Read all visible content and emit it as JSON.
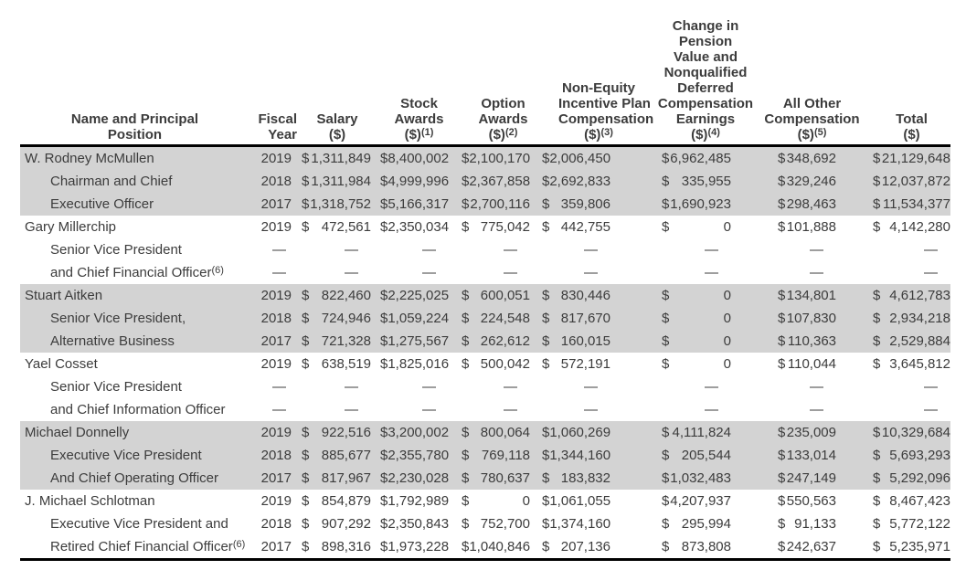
{
  "colors": {
    "shaded_band": "#d3d3d3",
    "plain_band": "#ffffff",
    "text": "#3c3c3c",
    "rule": "#000000"
  },
  "table": {
    "header": [
      {
        "id": "name",
        "lines": [
          "Name and Principal",
          "Position"
        ]
      },
      {
        "id": "year",
        "lines": [
          "Fiscal",
          "Year"
        ]
      },
      {
        "id": "salary",
        "lines": [
          "Salary",
          "($)"
        ]
      },
      {
        "id": "stock",
        "lines": [
          "Stock",
          "Awards",
          "($)^(1)"
        ]
      },
      {
        "id": "option",
        "lines": [
          "Option",
          "Awards",
          "($)^(2)"
        ]
      },
      {
        "id": "nonequity",
        "lines": [
          "Non-Equity",
          "Incentive Plan",
          "Compensation",
          "($)^(3)"
        ]
      },
      {
        "id": "pension",
        "lines": [
          "Change in",
          "Pension",
          "Value and",
          "Nonqualified",
          "Deferred",
          "Compensation",
          "Earnings",
          "($)^(4)"
        ]
      },
      {
        "id": "allother",
        "lines": [
          "All Other",
          "Compensation",
          "($)^(5)"
        ]
      },
      {
        "id": "total",
        "lines": [
          "Total",
          "($)"
        ]
      }
    ],
    "money_column_ids": [
      "salary",
      "stock",
      "option",
      "nonequity",
      "pension",
      "allother",
      "total"
    ],
    "groups": [
      {
        "executive": "W. Rodney McMullen",
        "shaded": true,
        "rows": [
          {
            "label": "W. Rodney McMullen",
            "indent": false,
            "year": "2019",
            "values": [
              "$1,311,849",
              "$8,400,002",
              "$2,100,170",
              "$2,006,450",
              "$6,962,485",
              "$348,692",
              "$21,129,648"
            ]
          },
          {
            "label": "Chairman and Chief",
            "indent": true,
            "year": "2018",
            "values": [
              "$1,311,984",
              "$4,999,996",
              "$2,367,858",
              "$2,692,833",
              "$ 335,955",
              "$329,246",
              "$12,037,872"
            ]
          },
          {
            "label": "Executive Officer",
            "indent": true,
            "year": "2017",
            "values": [
              "$1,318,752",
              "$5,166,317",
              "$2,700,116",
              "$ 359,806",
              "$1,690,923",
              "$298,463",
              "$11,534,377"
            ]
          }
        ]
      },
      {
        "executive": "Gary Millerchip",
        "shaded": false,
        "rows": [
          {
            "label": "Gary Millerchip",
            "indent": false,
            "year": "2019",
            "values": [
              "$ 472,561",
              "$2,350,034",
              "$ 775,042",
              "$ 442,755",
              "$ 0",
              "$101,888",
              "$ 4,142,280"
            ]
          },
          {
            "label": "Senior Vice President",
            "indent": true,
            "year": "—",
            "values": [
              "—",
              "—",
              "—",
              "—",
              "—",
              "—",
              "—"
            ]
          },
          {
            "label": "and Chief Financial Officer^(6)",
            "indent": true,
            "year": "—",
            "values": [
              "—",
              "—",
              "—",
              "—",
              "—",
              "—",
              "—"
            ]
          }
        ]
      },
      {
        "executive": "Stuart Aitken",
        "shaded": true,
        "rows": [
          {
            "label": "Stuart Aitken",
            "indent": false,
            "year": "2019",
            "values": [
              "$ 822,460",
              "$2,225,025",
              "$ 600,051",
              "$ 830,446",
              "$ 0",
              "$134,801",
              "$ 4,612,783"
            ]
          },
          {
            "label": "Senior Vice President,",
            "indent": true,
            "year": "2018",
            "values": [
              "$ 724,946",
              "$1,059,224",
              "$ 224,548",
              "$ 817,670",
              "$ 0",
              "$107,830",
              "$ 2,934,218"
            ]
          },
          {
            "label": "Alternative Business",
            "indent": true,
            "year": "2017",
            "values": [
              "$ 721,328",
              "$1,275,567",
              "$ 262,612",
              "$ 160,015",
              "$ 0",
              "$110,363",
              "$ 2,529,884"
            ]
          }
        ]
      },
      {
        "executive": "Yael Cosset",
        "shaded": false,
        "rows": [
          {
            "label": "Yael Cosset",
            "indent": false,
            "year": "2019",
            "values": [
              "$ 638,519",
              "$1,825,016",
              "$ 500,042",
              "$ 572,191",
              "$ 0",
              "$110,044",
              "$ 3,645,812"
            ]
          },
          {
            "label": "Senior Vice President",
            "indent": true,
            "year": "—",
            "values": [
              "—",
              "—",
              "—",
              "—",
              "—",
              "—",
              "—"
            ]
          },
          {
            "label": "and Chief Information Officer",
            "indent": true,
            "year": "—",
            "values": [
              "—",
              "—",
              "—",
              "—",
              "—",
              "—",
              "—"
            ]
          }
        ]
      },
      {
        "executive": "Michael Donnelly",
        "shaded": true,
        "rows": [
          {
            "label": "Michael Donnelly",
            "indent": false,
            "year": "2019",
            "values": [
              "$ 922,516",
              "$3,200,002",
              "$ 800,064",
              "$1,060,269",
              "$4,111,824",
              "$235,009",
              "$10,329,684"
            ]
          },
          {
            "label": "Executive Vice President",
            "indent": true,
            "year": "2018",
            "values": [
              "$ 885,677",
              "$2,355,780",
              "$ 769,118",
              "$1,344,160",
              "$ 205,544",
              "$133,014",
              "$ 5,693,293"
            ]
          },
          {
            "label": "And Chief Operating Officer",
            "indent": true,
            "year": "2017",
            "values": [
              "$ 817,967",
              "$2,230,028",
              "$ 780,637",
              "$ 183,832",
              "$1,032,483",
              "$247,149",
              "$ 5,292,096"
            ]
          }
        ]
      },
      {
        "executive": "J. Michael Schlotman",
        "shaded": false,
        "rows": [
          {
            "label": "J. Michael Schlotman",
            "indent": false,
            "year": "2019",
            "values": [
              "$ 854,879",
              "$1,792,989",
              "$ 0",
              "$1,061,055",
              "$4,207,937",
              "$550,563",
              "$ 8,467,423"
            ]
          },
          {
            "label": "Executive Vice President and",
            "indent": true,
            "year": "2018",
            "values": [
              "$ 907,292",
              "$2,350,843",
              "$ 752,700",
              "$1,374,160",
              "$ 295,994",
              "$ 91,133",
              "$ 5,772,122"
            ]
          },
          {
            "label": "Retired Chief Financial Officer^(6)",
            "indent": true,
            "year": "2017",
            "values": [
              "$ 898,316",
              "$ 1,973,228",
              "$ 1,040,846",
              "$ 207,136",
              "$ 873,808",
              "$242,637",
              "$ 5,235,971"
            ]
          }
        ]
      }
    ]
  }
}
